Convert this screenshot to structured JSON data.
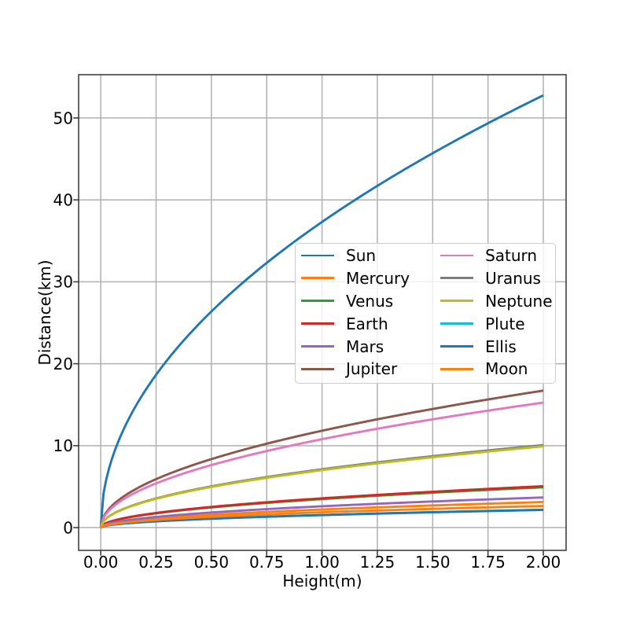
{
  "chart_data": {
    "type": "line",
    "title": "",
    "xlabel": "Height(m)",
    "ylabel": "Distance(km)",
    "xlim": [
      -0.1,
      2.103
    ],
    "ylim": [
      -2.78,
      55.28
    ],
    "grid": true,
    "legend_columns": 2,
    "legend_position": "center",
    "curve_model": "horizon distance: d(h) = value_at_h2 * sqrt(h/2)",
    "x_samples": [
      0,
      0.25,
      0.5,
      0.75,
      1.0,
      1.25,
      1.5,
      1.75,
      2.0
    ],
    "xticks": {
      "values": [
        0,
        0.25,
        0.5,
        0.75,
        1.0,
        1.25,
        1.5,
        1.75,
        2.0
      ],
      "labels": [
        "0.00",
        "0.25",
        "0.50",
        "0.75",
        "1.00",
        "1.25",
        "1.50",
        "1.75",
        "2.00"
      ]
    },
    "yticks": {
      "values": [
        0,
        10,
        20,
        30,
        40,
        50
      ],
      "labels": [
        "0",
        "10",
        "20",
        "30",
        "40",
        "50"
      ]
    },
    "series": [
      {
        "name": "Sun",
        "color": "#1f77b4",
        "value_at_h2": 52.76,
        "values": [
          0,
          18.66,
          26.38,
          32.31,
          37.31,
          41.71,
          45.69,
          49.35,
          52.76
        ]
      },
      {
        "name": "Mercury",
        "color": "#ff7f0e",
        "value_at_h2": 3.12,
        "values": [
          0,
          1.1,
          1.56,
          1.91,
          2.21,
          2.47,
          2.7,
          2.92,
          3.12
        ]
      },
      {
        "name": "Venus",
        "color": "#2ca02c",
        "value_at_h2": 4.92,
        "values": [
          0,
          1.74,
          2.46,
          3.01,
          3.48,
          3.89,
          4.26,
          4.6,
          4.92
        ]
      },
      {
        "name": "Earth",
        "color": "#d62728",
        "value_at_h2": 5.05,
        "values": [
          0,
          1.79,
          2.53,
          3.09,
          3.57,
          3.99,
          4.37,
          4.72,
          5.05
        ]
      },
      {
        "name": "Mars",
        "color": "#9467bd",
        "value_at_h2": 3.68,
        "values": [
          0,
          1.3,
          1.84,
          2.25,
          2.6,
          2.91,
          3.19,
          3.44,
          3.68
        ]
      },
      {
        "name": "Jupiter",
        "color": "#8c564b",
        "value_at_h2": 16.72,
        "values": [
          0,
          5.91,
          8.36,
          10.24,
          11.82,
          13.22,
          14.48,
          15.64,
          16.72
        ]
      },
      {
        "name": "Saturn",
        "color": "#e377c2",
        "value_at_h2": 15.26,
        "values": [
          0,
          5.4,
          7.63,
          9.35,
          10.79,
          12.07,
          13.22,
          14.28,
          15.26
        ]
      },
      {
        "name": "Uranus",
        "color": "#7f7f7f",
        "value_at_h2": 10.07,
        "values": [
          0,
          3.56,
          5.04,
          6.17,
          7.12,
          7.96,
          8.72,
          9.42,
          10.07
        ]
      },
      {
        "name": "Neptune",
        "color": "#bcbd22",
        "value_at_h2": 9.92,
        "values": [
          0,
          3.51,
          4.96,
          6.08,
          7.01,
          7.84,
          8.59,
          9.28,
          9.92
        ]
      },
      {
        "name": "Plute",
        "color": "#17becf",
        "value_at_h2": 2.18,
        "values": [
          0,
          0.77,
          1.09,
          1.34,
          1.54,
          1.72,
          1.89,
          2.04,
          2.18
        ]
      },
      {
        "name": "Ellis",
        "color": "#1f77b4",
        "value_at_h2": 2.16,
        "values": [
          0,
          0.76,
          1.08,
          1.32,
          1.53,
          1.71,
          1.87,
          2.02,
          2.16
        ]
      },
      {
        "name": "Moon",
        "color": "#ff7f0e",
        "value_at_h2": 2.64,
        "values": [
          0,
          0.93,
          1.32,
          1.62,
          1.87,
          2.09,
          2.29,
          2.47,
          2.64
        ]
      }
    ]
  },
  "colors": {
    "background": "#ffffff",
    "grid": "#b0b0b0",
    "spine": "#333333",
    "text": "#000000",
    "legend_border": "#cccccc",
    "legend_background": "#ffffff"
  }
}
